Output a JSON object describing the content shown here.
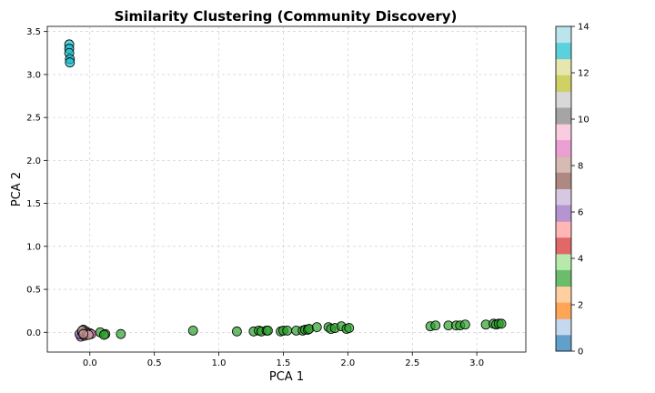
{
  "chart_data": {
    "type": "scatter",
    "title": "Similarity Clustering (Community Discovery)",
    "xlabel": "PCA 1",
    "ylabel": "PCA 2",
    "xlim": [
      -0.33,
      3.38
    ],
    "ylim": [
      -0.23,
      3.56
    ],
    "xticks": [
      0.0,
      0.5,
      1.0,
      1.5,
      2.0,
      2.5,
      3.0
    ],
    "yticks": [
      0.0,
      0.5,
      1.0,
      1.5,
      2.0,
      2.5,
      3.0,
      3.5
    ],
    "xtick_labels": [
      "0.0",
      "0.5",
      "1.0",
      "1.5",
      "2.0",
      "2.5",
      "3.0"
    ],
    "ytick_labels": [
      "0.0",
      "0.5",
      "1.0",
      "1.5",
      "2.0",
      "2.5",
      "3.0",
      "3.5"
    ],
    "grid": true,
    "colormap": "tab20",
    "colorbar": {
      "min": 0,
      "max": 14,
      "ticks": [
        0,
        2,
        4,
        6,
        8,
        10,
        12,
        14
      ],
      "tick_labels": [
        "0",
        "2",
        "4",
        "6",
        "8",
        "10",
        "12",
        "14"
      ],
      "colors": [
        "#1f77b4",
        "#aec7e8",
        "#ff7f0e",
        "#ffbb78",
        "#2ca02c",
        "#98df8a",
        "#d62728",
        "#ff9896",
        "#9467bd",
        "#c5b0d5",
        "#8c564b",
        "#c49c94",
        "#e377c2",
        "#f7b6d2",
        "#7f7f7f",
        "#c7c7c7",
        "#bcbd22",
        "#dbdb8d",
        "#17becf",
        "#9edae5"
      ]
    },
    "points": [
      {
        "x": -0.16,
        "y": 3.35,
        "c": 13
      },
      {
        "x": -0.16,
        "y": 3.3,
        "c": 13
      },
      {
        "x": -0.16,
        "y": 3.25,
        "c": 13
      },
      {
        "x": -0.155,
        "y": 3.18,
        "c": 13
      },
      {
        "x": -0.155,
        "y": 3.14,
        "c": 13
      },
      {
        "x": -0.07,
        "y": -0.05,
        "c": 6
      },
      {
        "x": -0.05,
        "y": -0.03,
        "c": 7
      },
      {
        "x": -0.08,
        "y": -0.02,
        "c": 6
      },
      {
        "x": -0.04,
        "y": -0.04,
        "c": 7
      },
      {
        "x": -0.06,
        "y": 0.0,
        "c": 8
      },
      {
        "x": -0.05,
        "y": 0.03,
        "c": 10
      },
      {
        "x": -0.03,
        "y": 0.01,
        "c": 10
      },
      {
        "x": -0.06,
        "y": 0.02,
        "c": 8
      },
      {
        "x": -0.02,
        "y": -0.01,
        "c": 9
      },
      {
        "x": 0.0,
        "y": -0.01,
        "c": 8
      },
      {
        "x": 0.01,
        "y": -0.02,
        "c": 9
      },
      {
        "x": -0.01,
        "y": -0.03,
        "c": 8
      },
      {
        "x": -0.05,
        "y": -0.02,
        "c": 8
      },
      {
        "x": 0.08,
        "y": 0.0,
        "c": 3
      },
      {
        "x": 0.12,
        "y": -0.02,
        "c": 3
      },
      {
        "x": 0.11,
        "y": -0.03,
        "c": 3
      },
      {
        "x": 0.24,
        "y": -0.02,
        "c": 3
      },
      {
        "x": 0.8,
        "y": 0.02,
        "c": 3
      },
      {
        "x": 1.14,
        "y": 0.01,
        "c": 3
      },
      {
        "x": 1.27,
        "y": 0.01,
        "c": 3
      },
      {
        "x": 1.31,
        "y": 0.02,
        "c": 3
      },
      {
        "x": 1.33,
        "y": 0.01,
        "c": 3
      },
      {
        "x": 1.37,
        "y": 0.02,
        "c": 3
      },
      {
        "x": 1.38,
        "y": 0.02,
        "c": 3
      },
      {
        "x": 1.48,
        "y": 0.01,
        "c": 3
      },
      {
        "x": 1.5,
        "y": 0.02,
        "c": 3
      },
      {
        "x": 1.53,
        "y": 0.02,
        "c": 3
      },
      {
        "x": 1.6,
        "y": 0.02,
        "c": 3
      },
      {
        "x": 1.65,
        "y": 0.02,
        "c": 3
      },
      {
        "x": 1.67,
        "y": 0.03,
        "c": 3
      },
      {
        "x": 1.69,
        "y": 0.03,
        "c": 3
      },
      {
        "x": 1.7,
        "y": 0.04,
        "c": 3
      },
      {
        "x": 1.76,
        "y": 0.06,
        "c": 3
      },
      {
        "x": 1.85,
        "y": 0.06,
        "c": 3
      },
      {
        "x": 1.87,
        "y": 0.04,
        "c": 3
      },
      {
        "x": 1.9,
        "y": 0.05,
        "c": 3
      },
      {
        "x": 1.95,
        "y": 0.07,
        "c": 3
      },
      {
        "x": 1.99,
        "y": 0.04,
        "c": 3
      },
      {
        "x": 2.01,
        "y": 0.05,
        "c": 3
      },
      {
        "x": 2.64,
        "y": 0.07,
        "c": 3
      },
      {
        "x": 2.68,
        "y": 0.08,
        "c": 3
      },
      {
        "x": 2.78,
        "y": 0.08,
        "c": 3
      },
      {
        "x": 2.84,
        "y": 0.08,
        "c": 3
      },
      {
        "x": 2.87,
        "y": 0.08,
        "c": 3
      },
      {
        "x": 2.91,
        "y": 0.09,
        "c": 3
      },
      {
        "x": 3.07,
        "y": 0.09,
        "c": 3
      },
      {
        "x": 3.13,
        "y": 0.1,
        "c": 3
      },
      {
        "x": 3.15,
        "y": 0.09,
        "c": 3
      },
      {
        "x": 3.17,
        "y": 0.1,
        "c": 3
      },
      {
        "x": 3.19,
        "y": 0.1,
        "c": 3
      }
    ]
  }
}
